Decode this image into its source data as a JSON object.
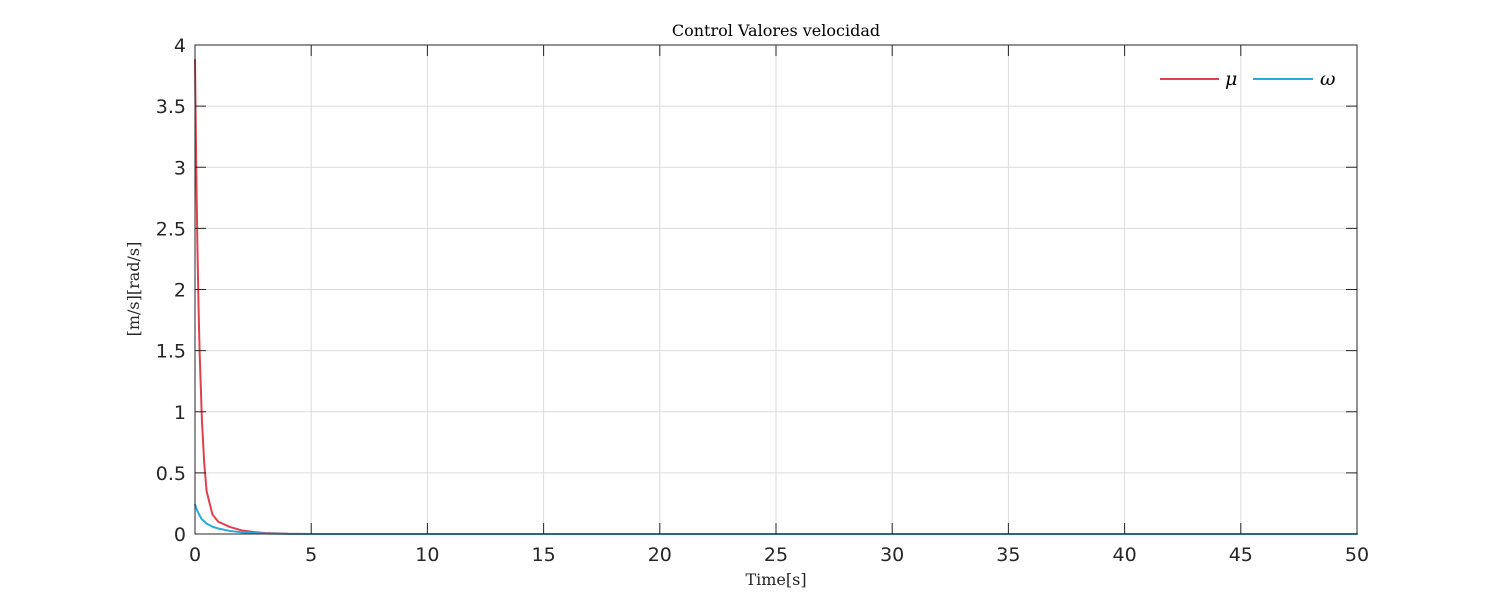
{
  "chart_data": {
    "type": "line",
    "title": "Control Valores velocidad",
    "xlabel": "Time[s]",
    "ylabel": "[m/s][rad/s]",
    "xlim": [
      0,
      50
    ],
    "ylim": [
      0,
      4
    ],
    "xticks": [
      "0",
      "5",
      "10",
      "15",
      "20",
      "25",
      "30",
      "35",
      "40",
      "45",
      "50"
    ],
    "yticks": [
      "0",
      "0.5",
      "1",
      "1.5",
      "2",
      "2.5",
      "3",
      "3.5",
      "4"
    ],
    "grid": true,
    "legend_position": "top-right",
    "series": [
      {
        "name": "μ",
        "color": "#e0404f",
        "x": [
          0,
          0.05,
          0.1,
          0.15,
          0.2,
          0.3,
          0.4,
          0.5,
          0.75,
          1,
          1.5,
          2,
          2.5,
          3,
          4,
          5,
          7.5,
          10,
          20,
          30,
          40,
          50
        ],
        "y": [
          3.88,
          3.05,
          2.4,
          1.88,
          1.48,
          0.92,
          0.57,
          0.35,
          0.16,
          0.1,
          0.058,
          0.03,
          0.016,
          0.008,
          0.002,
          0.0005,
          0,
          0,
          0,
          0,
          0,
          0
        ]
      },
      {
        "name": "ω",
        "color": "#2aa9de",
        "x": [
          0,
          0.1,
          0.2,
          0.3,
          0.5,
          0.75,
          1,
          1.5,
          2,
          2.5,
          3,
          4,
          5,
          7.5,
          10,
          20,
          30,
          40,
          50
        ],
        "y": [
          0.24,
          0.19,
          0.15,
          0.12,
          0.085,
          0.06,
          0.045,
          0.025,
          0.014,
          0.008,
          0.004,
          0.0015,
          0.0004,
          0,
          0,
          0,
          0,
          0,
          0
        ]
      }
    ]
  }
}
